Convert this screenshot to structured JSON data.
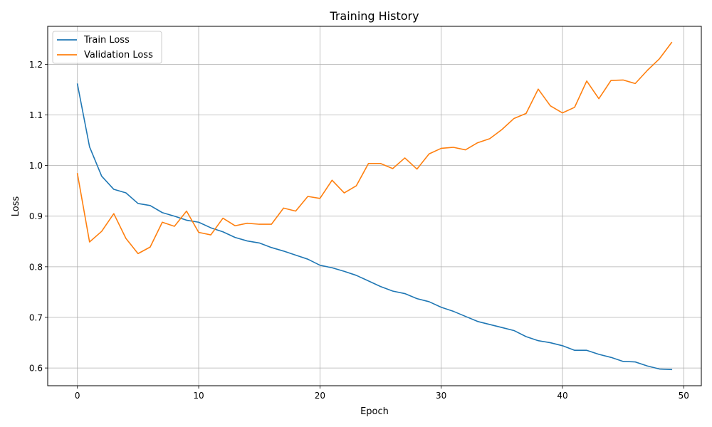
{
  "chart_data": {
    "type": "line",
    "title": "Training History",
    "xlabel": "Epoch",
    "ylabel": "Loss",
    "xlim": [
      -2.45,
      51.45
    ],
    "ylim": [
      0.565,
      1.275
    ],
    "xticks": [
      0,
      10,
      20,
      30,
      40,
      50
    ],
    "yticks": [
      0.6,
      0.7,
      0.8,
      0.9,
      1.0,
      1.1,
      1.2
    ],
    "grid": true,
    "legend_position": "top-left",
    "x": [
      0,
      1,
      2,
      3,
      4,
      5,
      6,
      7,
      8,
      9,
      10,
      11,
      12,
      13,
      14,
      15,
      16,
      17,
      18,
      19,
      20,
      21,
      22,
      23,
      24,
      25,
      26,
      27,
      28,
      29,
      30,
      31,
      32,
      33,
      34,
      35,
      36,
      37,
      38,
      39,
      40,
      41,
      42,
      43,
      44,
      45,
      46,
      47,
      48,
      49
    ],
    "series": [
      {
        "name": "Train Loss",
        "color": "#1f77b4",
        "values": [
          1.161,
          1.037,
          0.979,
          0.953,
          0.946,
          0.925,
          0.921,
          0.907,
          0.9,
          0.892,
          0.888,
          0.877,
          0.869,
          0.858,
          0.851,
          0.847,
          0.838,
          0.831,
          0.823,
          0.815,
          0.803,
          0.798,
          0.791,
          0.783,
          0.772,
          0.761,
          0.752,
          0.747,
          0.737,
          0.731,
          0.72,
          0.712,
          0.702,
          0.692,
          0.686,
          0.68,
          0.674,
          0.662,
          0.654,
          0.65,
          0.644,
          0.635,
          0.635,
          0.627,
          0.621,
          0.613,
          0.612,
          0.604,
          0.598,
          0.597
        ]
      },
      {
        "name": "Validation Loss",
        "color": "#ff7f0e",
        "values": [
          0.984,
          0.849,
          0.87,
          0.905,
          0.856,
          0.826,
          0.839,
          0.888,
          0.88,
          0.91,
          0.868,
          0.863,
          0.896,
          0.881,
          0.886,
          0.884,
          0.884,
          0.916,
          0.91,
          0.939,
          0.935,
          0.971,
          0.946,
          0.96,
          1.004,
          1.004,
          0.994,
          1.015,
          0.993,
          1.023,
          1.034,
          1.036,
          1.031,
          1.045,
          1.053,
          1.071,
          1.093,
          1.103,
          1.151,
          1.118,
          1.104,
          1.115,
          1.167,
          1.132,
          1.168,
          1.169,
          1.162,
          1.188,
          1.211,
          1.243
        ]
      }
    ]
  }
}
